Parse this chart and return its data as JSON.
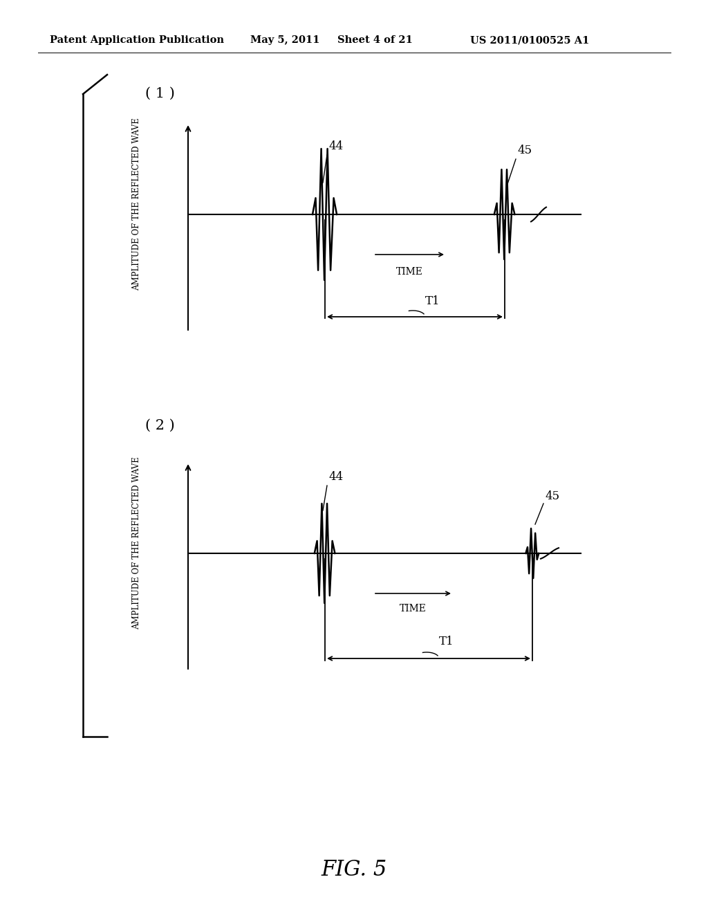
{
  "background_color": "#ffffff",
  "header_text": "Patent Application Publication",
  "header_date": "May 5, 2011",
  "header_sheet": "Sheet 4 of 21",
  "header_patent": "US 2011/0100525 A1",
  "fig_label": "FIG. 5",
  "panel1_label": "( 1 )",
  "panel2_label": "( 2 )",
  "ylabel_text": "AMPLITUDE OF THE REFLECTED WAVE",
  "time_label": "TIME",
  "t1_label": "T1",
  "label_44": "44",
  "label_45": "45"
}
